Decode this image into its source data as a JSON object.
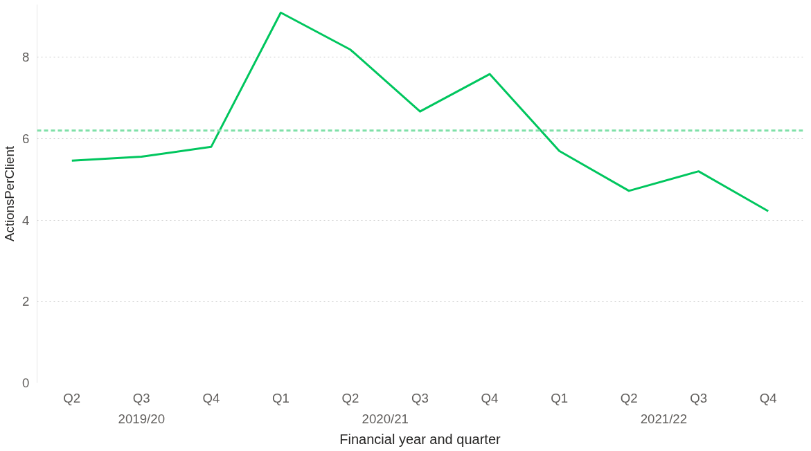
{
  "chart_data": {
    "type": "line",
    "xlabel": "Financial year and quarter",
    "ylabel": "ActionsPerClient",
    "categories": [
      "Q2",
      "Q3",
      "Q4",
      "Q1",
      "Q2",
      "Q3",
      "Q4",
      "Q1",
      "Q2",
      "Q3",
      "Q4"
    ],
    "series": [
      {
        "color": "#00c65e",
        "values": [
          5.46,
          5.56,
          5.8,
          9.1,
          8.19,
          6.67,
          7.59,
          5.7,
          4.72,
          5.2,
          4.22
        ]
      }
    ],
    "ylim": [
      0,
      9.3
    ],
    "yticks": [
      0,
      2,
      4,
      6,
      8
    ],
    "grid": "y",
    "marker": "none",
    "line_style": "solid",
    "ref_lines": [
      {
        "axis": "y",
        "value": 6.2,
        "color": "#7fe0a8",
        "line_style": "dashed"
      }
    ],
    "annotations": [
      "2019/20",
      "2020/21",
      "2021/22"
    ]
  }
}
